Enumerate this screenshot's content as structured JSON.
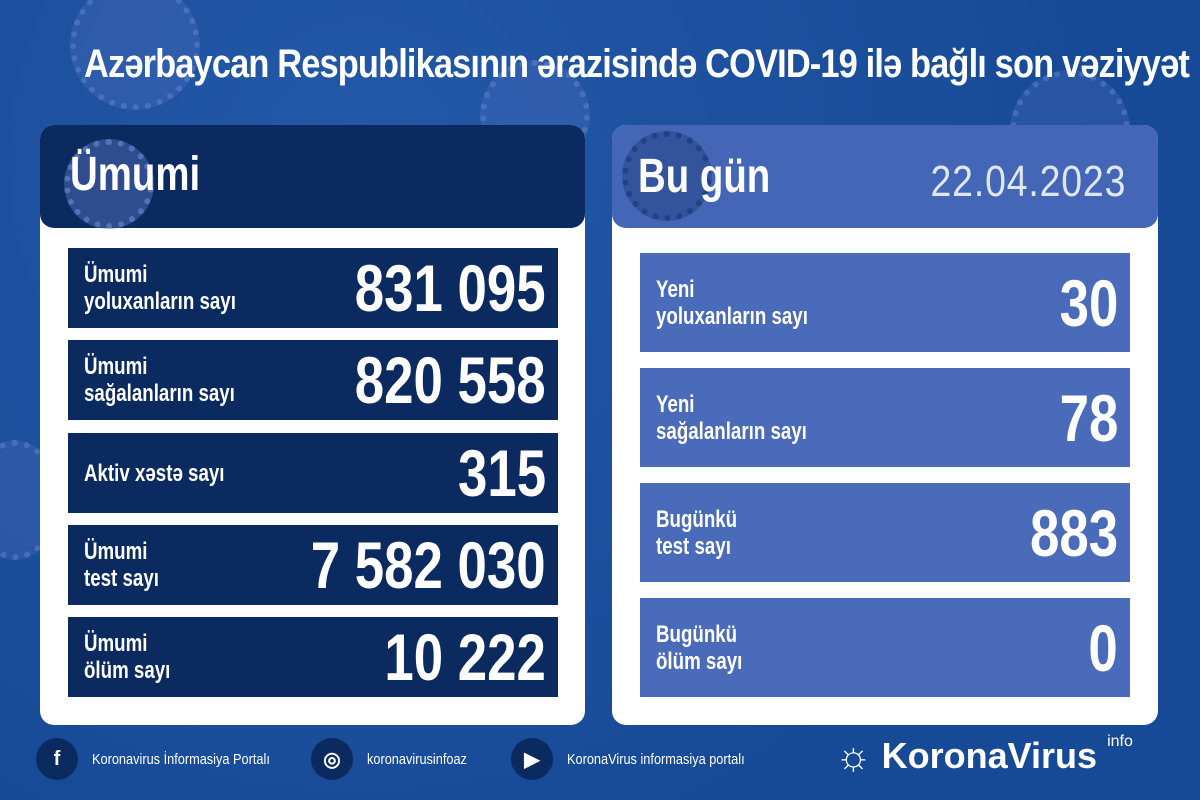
{
  "title": "Azərbaycan Respublikasının ərazisində COVID-19 ilə bağlı son vəziyyət",
  "total": {
    "heading": "Ümumi",
    "rows": [
      {
        "label": "Ümumi\nyoluxanların sayı",
        "value": "831 095"
      },
      {
        "label": "Ümumi\nsağalanların sayı",
        "value": "820 558"
      },
      {
        "label": "Aktiv xəstə sayı",
        "value": "315"
      },
      {
        "label": "Ümumi\ntest sayı",
        "value": "7 582 030"
      },
      {
        "label": "Ümumi\nölüm sayı",
        "value": "10 222"
      }
    ]
  },
  "today": {
    "heading": "Bu gün",
    "date": "22.04.2023",
    "rows": [
      {
        "label": "Yeni\nyoluxanların sayı",
        "value": "30"
      },
      {
        "label": "Yeni\nsağalanların sayı",
        "value": "78"
      },
      {
        "label": "Bugünkü\ntest sayı",
        "value": "883"
      },
      {
        "label": "Bugünkü\nölüm sayı",
        "value": "0"
      }
    ]
  },
  "footer": {
    "facebook": "Koronavirus İnformasiya Portalı",
    "instagram": "koronavirusinfoaz",
    "youtube": "KoronaVirus informasiya portalı"
  },
  "logo": {
    "name": "KoronaVirus",
    "sup": "info"
  },
  "colors": {
    "background": "#1d4f9e",
    "navy": "#0b2a5f",
    "today_row": "#4a6bb9"
  }
}
